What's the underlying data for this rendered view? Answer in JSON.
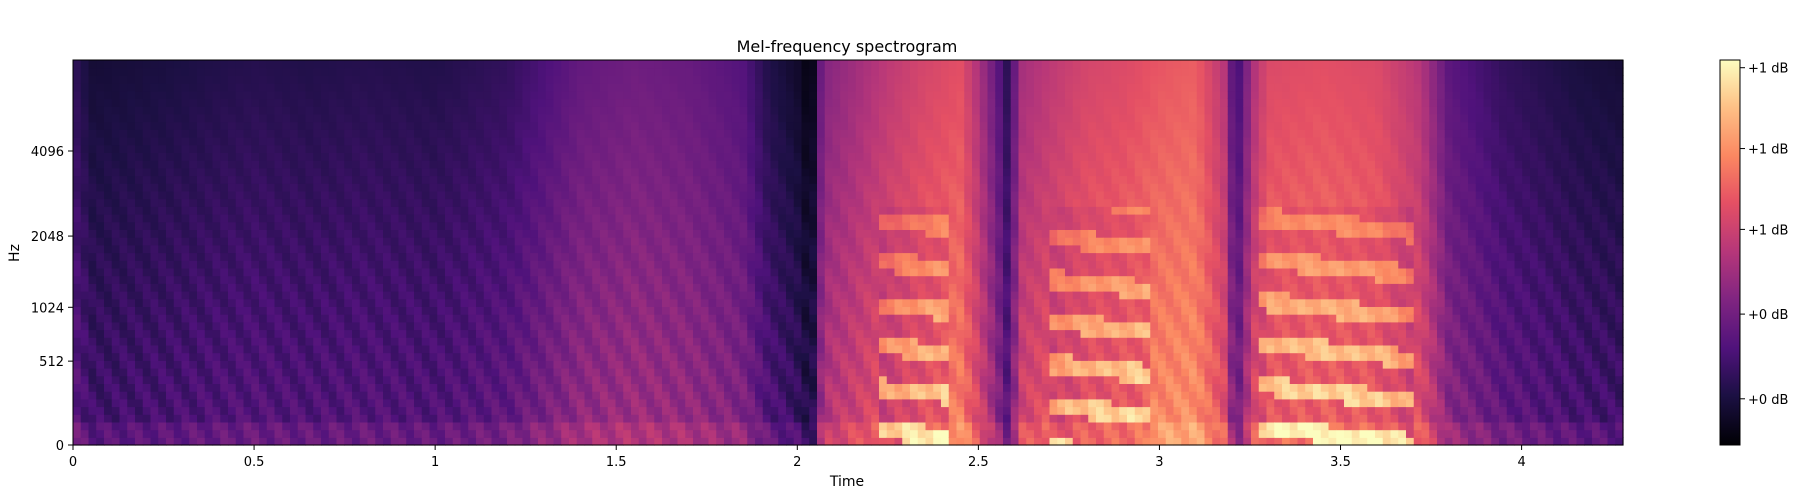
{
  "chart_data": {
    "type": "heatmap",
    "title": "Mel-frequency spectrogram",
    "xlabel": "Time",
    "ylabel": "Hz",
    "xlim": [
      0,
      4.28
    ],
    "x_ticks": [
      0,
      0.5,
      1,
      1.5,
      2,
      2.5,
      3,
      3.5,
      4
    ],
    "x_tick_labels": [
      "0",
      "0.5",
      "1",
      "1.5",
      "2",
      "2.5",
      "3",
      "3.5",
      "4"
    ],
    "y_scale": "mel",
    "ylim": [
      0,
      8000
    ],
    "y_ticks": [
      0,
      512,
      1024,
      2048,
      4096
    ],
    "y_tick_labels": [
      "0",
      "512",
      "1024",
      "2048",
      "4096"
    ],
    "colormap": "magma",
    "colorbar": {
      "label_format": "dB",
      "tick_labels": [
        "+0 dB",
        "+0 dB",
        "+1 dB",
        "+1 dB",
        "+1 dB"
      ],
      "tick_positions": [
        0.12,
        0.34,
        0.56,
        0.77,
        0.98
      ]
    },
    "time_columns": 200,
    "mel_bands": 50,
    "energy_profile": [
      [
        0.0,
        0.3
      ],
      [
        0.05,
        0.22
      ],
      [
        0.25,
        0.24
      ],
      [
        0.4,
        0.26
      ],
      [
        0.5,
        0.27
      ],
      [
        0.65,
        0.26
      ],
      [
        0.8,
        0.27
      ],
      [
        1.0,
        0.26
      ],
      [
        1.2,
        0.3
      ],
      [
        1.3,
        0.36
      ],
      [
        1.4,
        0.42
      ],
      [
        1.55,
        0.45
      ],
      [
        1.7,
        0.43
      ],
      [
        1.85,
        0.38
      ],
      [
        1.92,
        0.26
      ],
      [
        2.0,
        0.2
      ],
      [
        2.04,
        0.12
      ],
      [
        2.07,
        0.5
      ],
      [
        2.15,
        0.56
      ],
      [
        2.25,
        0.64
      ],
      [
        2.35,
        0.7
      ],
      [
        2.45,
        0.74
      ],
      [
        2.5,
        0.6
      ],
      [
        2.55,
        0.42
      ],
      [
        2.58,
        0.28
      ],
      [
        2.62,
        0.58
      ],
      [
        2.7,
        0.64
      ],
      [
        2.8,
        0.7
      ],
      [
        2.9,
        0.72
      ],
      [
        3.0,
        0.76
      ],
      [
        3.1,
        0.78
      ],
      [
        3.18,
        0.62
      ],
      [
        3.21,
        0.3
      ],
      [
        3.26,
        0.6
      ],
      [
        3.3,
        0.72
      ],
      [
        3.45,
        0.74
      ],
      [
        3.6,
        0.72
      ],
      [
        3.72,
        0.62
      ],
      [
        3.8,
        0.4
      ],
      [
        3.95,
        0.3
      ],
      [
        4.15,
        0.24
      ],
      [
        4.28,
        0.22
      ]
    ],
    "harmonic_regions": [
      [
        2.23,
        2.42
      ],
      [
        2.7,
        2.98
      ],
      [
        3.28,
        3.7
      ]
    ]
  }
}
